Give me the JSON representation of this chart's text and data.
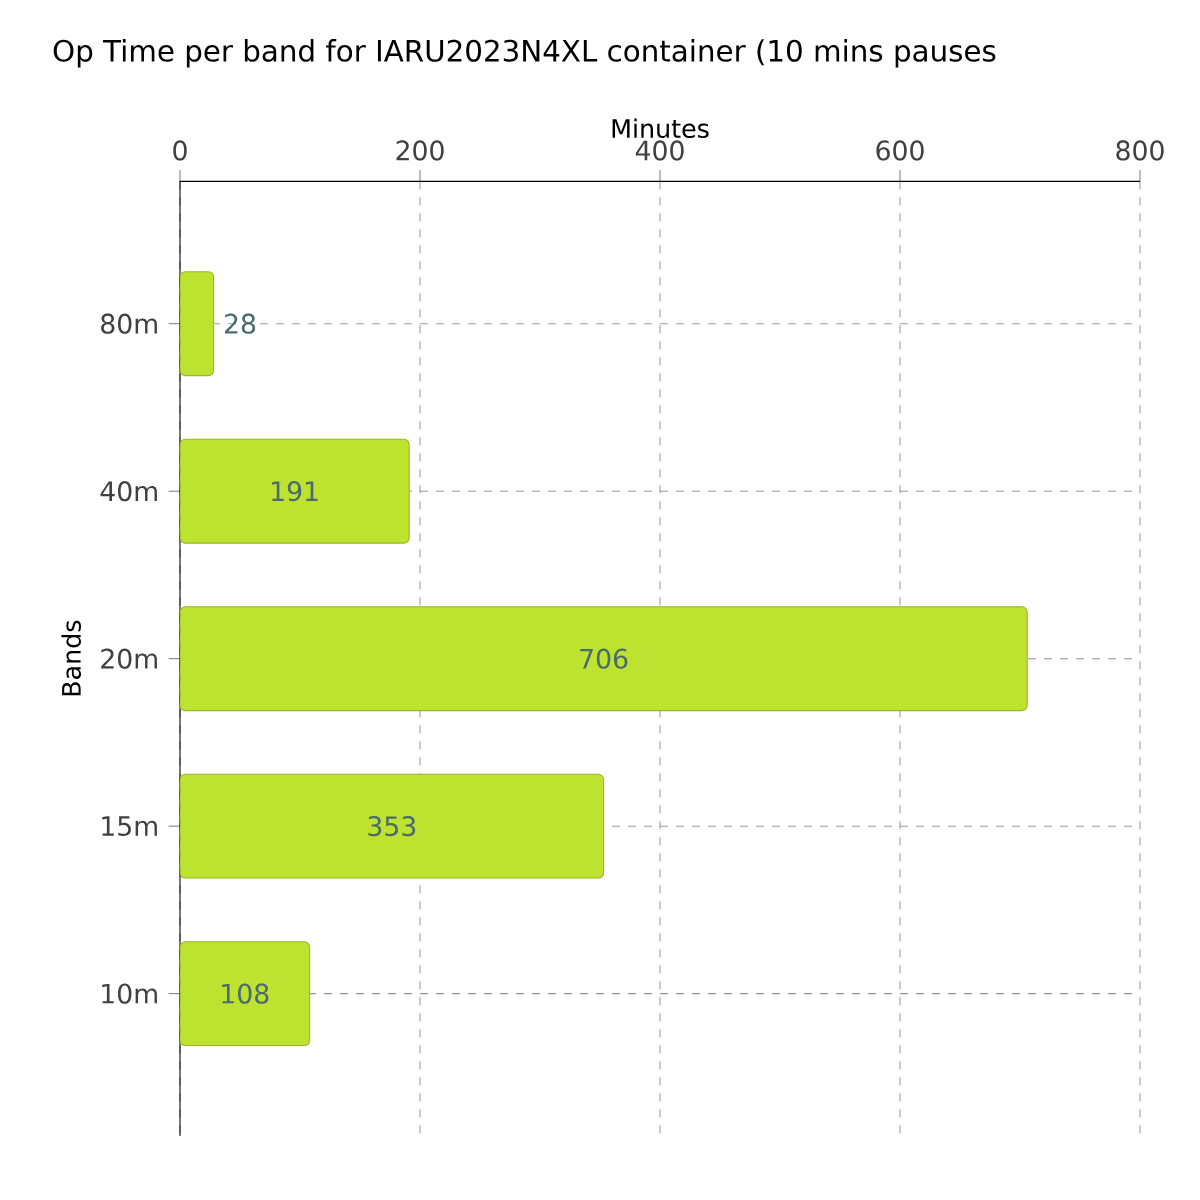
{
  "chart_data": {
    "type": "bar",
    "orientation": "horizontal",
    "title": "Op Time per band for IARU2023N4XL container (10 mins pauses",
    "xlabel": "Minutes",
    "ylabel": "Bands",
    "categories": [
      "80m",
      "40m",
      "20m",
      "15m",
      "10m"
    ],
    "values": [
      28,
      191,
      706,
      353,
      108
    ],
    "color": "#bde22f",
    "xlim": [
      0,
      800
    ],
    "xticks": [
      0,
      200,
      400,
      600,
      800
    ],
    "grid": true,
    "data_labels": true
  }
}
